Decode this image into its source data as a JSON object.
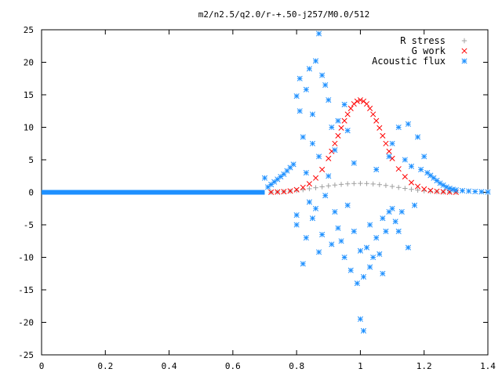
{
  "chart_data": {
    "type": "scatter",
    "title": "m2/n2.5/q2.0/r-+.50-j257/M0.0/512",
    "xlabel": "",
    "ylabel": "",
    "xlim": [
      0,
      1.4
    ],
    "ylim": [
      -25,
      25
    ],
    "x_ticks": [
      "0",
      "0.2",
      "0.4",
      "0.6",
      "0.8",
      "1",
      "1.2",
      "1.4"
    ],
    "y_ticks": [
      "-25",
      "-20",
      "-15",
      "-10",
      "-5",
      "0",
      "5",
      "10",
      "15",
      "20",
      "25"
    ],
    "x_tick_values": [
      0,
      0.2,
      0.4,
      0.6,
      0.8,
      1.0,
      1.2,
      1.4
    ],
    "y_tick_values": [
      -25,
      -20,
      -15,
      -10,
      -5,
      0,
      5,
      10,
      15,
      20,
      25
    ],
    "grid": false,
    "legend_position": "top-right",
    "series": [
      {
        "name": "R stress",
        "marker": "plus",
        "color": "#a0a0a0",
        "x": [
          0.72,
          0.74,
          0.76,
          0.78,
          0.8,
          0.82,
          0.84,
          0.86,
          0.88,
          0.9,
          0.92,
          0.94,
          0.96,
          0.98,
          1.0,
          1.02,
          1.04,
          1.06,
          1.08,
          1.1,
          1.12,
          1.14,
          1.16,
          1.18,
          1.2,
          1.22,
          1.24,
          1.26,
          1.28,
          1.3
        ],
        "y": [
          0.02,
          0.05,
          0.1,
          0.18,
          0.28,
          0.4,
          0.55,
          0.7,
          0.85,
          1.0,
          1.12,
          1.22,
          1.3,
          1.35,
          1.37,
          1.35,
          1.28,
          1.18,
          1.05,
          0.9,
          0.75,
          0.6,
          0.45,
          0.33,
          0.22,
          0.14,
          0.08,
          0.04,
          0.02,
          0.01
        ]
      },
      {
        "name": "G work",
        "marker": "cross",
        "color": "#ff0000",
        "x": [
          0.72,
          0.74,
          0.76,
          0.78,
          0.8,
          0.82,
          0.84,
          0.86,
          0.88,
          0.9,
          0.91,
          0.92,
          0.93,
          0.94,
          0.95,
          0.96,
          0.97,
          0.98,
          0.99,
          1.0,
          1.01,
          1.02,
          1.03,
          1.04,
          1.05,
          1.06,
          1.07,
          1.08,
          1.09,
          1.1,
          1.12,
          1.14,
          1.16,
          1.18,
          1.2,
          1.22,
          1.24,
          1.26,
          1.28,
          1.3
        ],
        "y": [
          0.02,
          0.05,
          0.1,
          0.2,
          0.4,
          0.75,
          1.3,
          2.2,
          3.5,
          5.2,
          6.3,
          7.5,
          8.7,
          9.9,
          11.0,
          12.0,
          12.9,
          13.6,
          14.0,
          14.2,
          14.0,
          13.6,
          12.9,
          12.0,
          11.0,
          9.9,
          8.7,
          7.5,
          6.3,
          5.2,
          3.6,
          2.4,
          1.5,
          0.9,
          0.5,
          0.28,
          0.15,
          0.08,
          0.04,
          0.02
        ]
      },
      {
        "name": "Acoustic flux",
        "marker": "star",
        "color": "#1e90ff",
        "x": [
          0.7,
          0.71,
          0.72,
          0.73,
          0.74,
          0.75,
          0.76,
          0.77,
          0.78,
          0.79,
          0.8,
          0.8,
          0.8,
          0.81,
          0.81,
          0.82,
          0.82,
          0.83,
          0.83,
          0.83,
          0.84,
          0.84,
          0.85,
          0.85,
          0.85,
          0.86,
          0.86,
          0.87,
          0.87,
          0.87,
          0.88,
          0.88,
          0.89,
          0.89,
          0.9,
          0.9,
          0.91,
          0.91,
          0.92,
          0.92,
          0.93,
          0.93,
          0.94,
          0.95,
          0.95,
          0.96,
          0.96,
          0.97,
          0.98,
          0.98,
          0.99,
          1.0,
          1.0,
          1.01,
          1.01,
          1.02,
          1.03,
          1.03,
          1.04,
          1.05,
          1.05,
          1.06,
          1.07,
          1.07,
          1.08,
          1.09,
          1.09,
          1.1,
          1.1,
          1.11,
          1.12,
          1.12,
          1.13,
          1.14,
          1.15,
          1.15,
          1.16,
          1.17,
          1.18,
          1.19,
          1.2,
          1.21,
          1.22,
          1.23,
          1.24,
          1.25,
          1.26,
          1.27,
          1.28,
          1.29,
          1.3,
          1.32,
          1.34,
          1.36,
          1.38,
          1.4
        ],
        "y": [
          2.2,
          0.8,
          1.2,
          1.6,
          2.0,
          2.4,
          2.8,
          3.3,
          3.8,
          4.3,
          14.8,
          -3.5,
          -5.0,
          12.5,
          17.5,
          -11.0,
          8.5,
          15.8,
          -7.0,
          3.0,
          19.0,
          -1.5,
          12.0,
          7.5,
          -4.0,
          20.2,
          -2.5,
          24.4,
          -9.2,
          5.5,
          18.0,
          -6.5,
          16.5,
          -0.5,
          14.2,
          2.5,
          -8.0,
          10.0,
          -3.0,
          6.5,
          -5.5,
          11.0,
          -7.5,
          13.5,
          -10.0,
          -2.0,
          9.5,
          -12.0,
          -6.0,
          4.5,
          -14.0,
          -19.5,
          -9.0,
          -13.0,
          -21.3,
          -8.5,
          -5.0,
          -11.5,
          -10.0,
          -7.0,
          3.5,
          -9.5,
          -4.0,
          -12.5,
          -6.0,
          -3.0,
          5.5,
          -2.5,
          7.5,
          -4.5,
          -6.0,
          10.0,
          -3.0,
          5.0,
          -8.5,
          10.5,
          4.0,
          -2.0,
          8.5,
          3.5,
          5.5,
          3.0,
          2.6,
          2.2,
          1.8,
          1.4,
          1.1,
          0.8,
          0.6,
          0.45,
          0.35,
          0.25,
          0.18,
          0.12,
          0.08,
          0.05
        ]
      }
    ]
  }
}
